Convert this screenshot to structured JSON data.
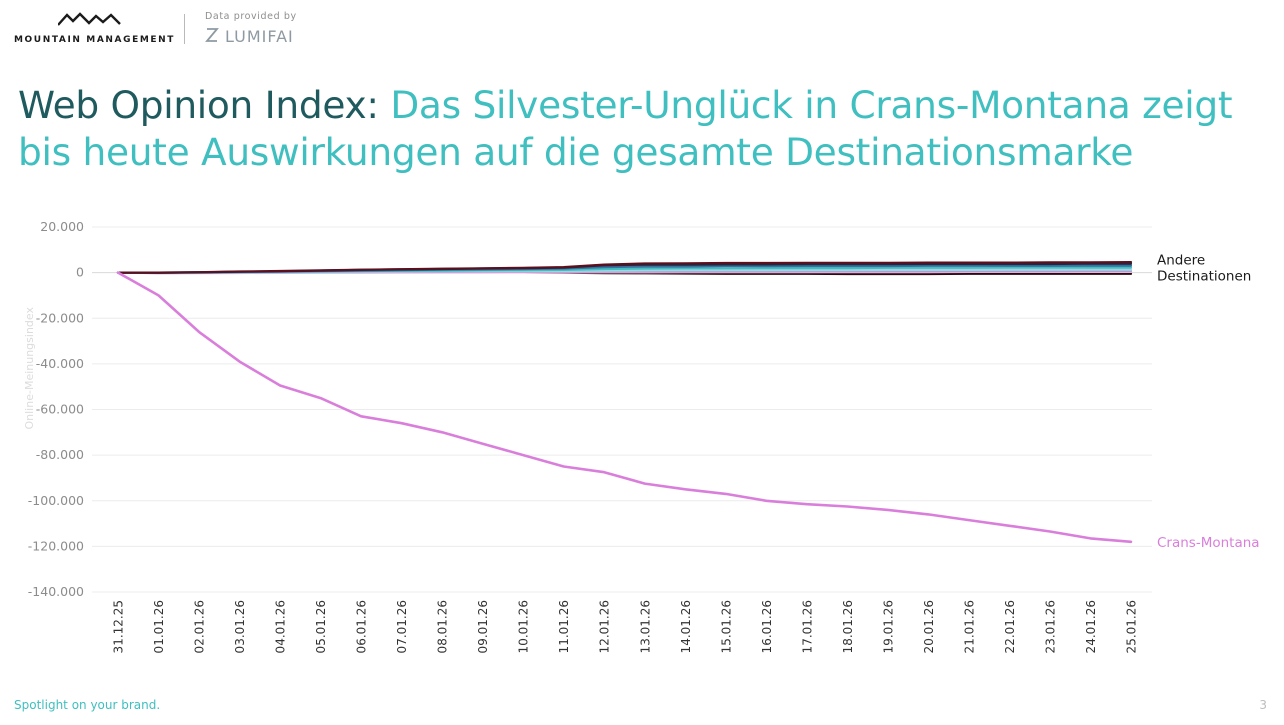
{
  "header": {
    "brand": "MOUNTAIN MANAGEMENT",
    "provided_by": "Data provided by",
    "partner": "LUMIFAI"
  },
  "title": {
    "prefix": "Web Opinion Index:",
    "main": "Das Silvester-Unglück in Crans-Montana zeigt bis heute Auswirkungen auf die gesamte Destinationsmarke"
  },
  "chart_data": {
    "type": "line",
    "title": "",
    "xlabel": "",
    "ylabel": "Online-Meinungsindex",
    "ylim": [
      -140000,
      20000
    ],
    "yticks": [
      "20.000",
      "0",
      "-20.000",
      "-40.000",
      "-60.000",
      "-80.000",
      "-100.000",
      "-120.000",
      "-140.000"
    ],
    "ytick_values": [
      20000,
      0,
      -20000,
      -40000,
      -60000,
      -80000,
      -100000,
      -120000,
      -140000
    ],
    "grid": true,
    "x": [
      "31.12.25",
      "01.01.26",
      "02.01.26",
      "03.01.26",
      "04.01.26",
      "05.01.26",
      "06.01.26",
      "07.01.26",
      "08.01.26",
      "09.01.26",
      "10.01.26",
      "11.01.26",
      "12.01.26",
      "13.01.26",
      "14.01.26",
      "15.01.26",
      "16.01.26",
      "17.01.26",
      "18.01.26",
      "19.01.26",
      "20.01.26",
      "21.01.26",
      "22.01.26",
      "23.01.26",
      "24.01.26",
      "25.01.26"
    ],
    "series": [
      {
        "name": "Crans-Montana",
        "color": "#d97fdb",
        "values": [
          0,
          -10000,
          -26000,
          -39000,
          -49500,
          -55000,
          -63000,
          -66000,
          -70000,
          -75000,
          -80000,
          -85000,
          -87500,
          -92500,
          -95000,
          -97000,
          -100000,
          -101500,
          -102500,
          -104000,
          -106000,
          -108500,
          -111000,
          -113500,
          -116500,
          -118000
        ]
      },
      {
        "name": "",
        "color": "#5c0f1d",
        "values": [
          0,
          0,
          200,
          500,
          700,
          1000,
          1300,
          1500,
          1700,
          1900,
          2100,
          2400,
          3500,
          4000,
          4100,
          4200,
          4200,
          4300,
          4300,
          4300,
          4400,
          4400,
          4400,
          4500,
          4500,
          4600
        ]
      },
      {
        "name": "",
        "color": "#1e2a44",
        "values": [
          0,
          0,
          150,
          400,
          600,
          900,
          1200,
          1400,
          1600,
          1800,
          2000,
          2200,
          3200,
          3500,
          3500,
          3600,
          3600,
          3700,
          3700,
          3700,
          3800,
          3800,
          3800,
          3800,
          3900,
          3900
        ]
      },
      {
        "name": "",
        "color": "#3b6f9e",
        "values": [
          0,
          -100,
          100,
          300,
          500,
          700,
          900,
          1100,
          1300,
          1400,
          1600,
          1800,
          2400,
          2700,
          2700,
          2800,
          2800,
          2900,
          2900,
          2900,
          3000,
          3000,
          3000,
          3000,
          3100,
          3100
        ]
      },
      {
        "name": "",
        "color": "#3fbfbf",
        "values": [
          0,
          -100,
          50,
          200,
          400,
          500,
          700,
          800,
          900,
          1000,
          1100,
          1200,
          1600,
          1800,
          1900,
          1900,
          2000,
          2000,
          2000,
          2100,
          2100,
          2100,
          2200,
          2200,
          2200,
          2200
        ]
      },
      {
        "name": "",
        "color": "#9fd6e4",
        "values": [
          0,
          -150,
          0,
          100,
          200,
          300,
          400,
          500,
          600,
          650,
          700,
          750,
          900,
          1000,
          1050,
          1100,
          1100,
          1150,
          1150,
          1200,
          1200,
          1200,
          1250,
          1250,
          1300,
          1300
        ]
      },
      {
        "name": "",
        "color": "#b39ad3",
        "values": [
          0,
          -200,
          -100,
          0,
          100,
          200,
          200,
          300,
          300,
          400,
          400,
          400,
          500,
          500,
          500,
          550,
          550,
          600,
          600,
          600,
          600,
          650,
          650,
          650,
          700,
          700
        ]
      },
      {
        "name": "",
        "color": "#f1b5e3",
        "values": [
          0,
          -250,
          -200,
          -150,
          -100,
          -50,
          0,
          0,
          50,
          50,
          100,
          100,
          150,
          150,
          200,
          200,
          200,
          250,
          250,
          250,
          250,
          300,
          300,
          300,
          300,
          300
        ]
      },
      {
        "name": "",
        "color": "#2a0a10",
        "values": [
          0,
          -100,
          0,
          100,
          200,
          300,
          300,
          300,
          300,
          200,
          100,
          0,
          -200,
          -300,
          -400,
          -500,
          -500,
          -500,
          -600,
          -600,
          -600,
          -500,
          -500,
          -500,
          -500,
          -500
        ]
      }
    ],
    "labels": [
      {
        "text": "Andere Destinationen",
        "lines": [
          "Andere",
          "Destinationen"
        ],
        "anchor_value": 2200,
        "color": "#1b1b1b"
      },
      {
        "text": "Crans-Montana",
        "lines": [
          "Crans-Montana"
        ],
        "anchor_value": -118000,
        "color": "#d97fdb"
      }
    ]
  },
  "footer": {
    "tagline": "Spotlight on your brand.",
    "page": "3"
  }
}
